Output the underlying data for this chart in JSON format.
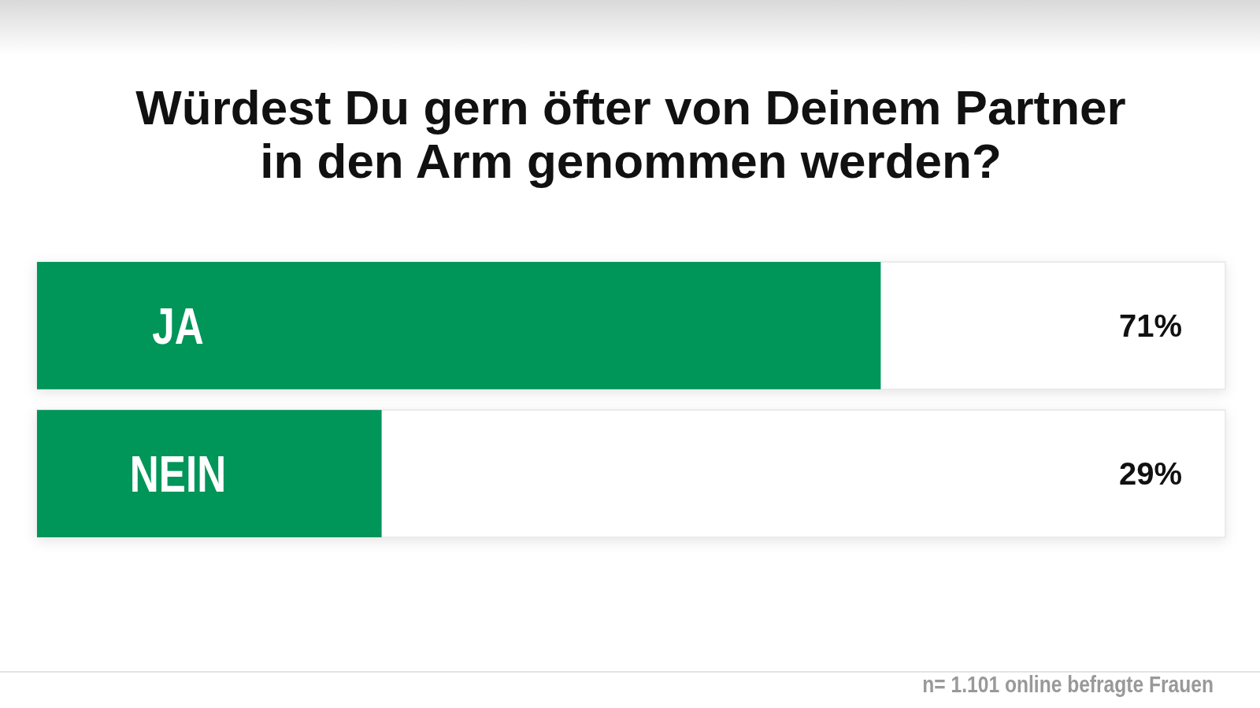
{
  "chart_data": {
    "type": "bar",
    "orientation": "horizontal",
    "title": "Würdest Du gern öfter von Deinem Partner\nin den Arm genommen werden?",
    "categories": [
      "JA",
      "NEIN"
    ],
    "values": [
      71,
      29
    ],
    "value_labels": [
      "71%",
      "29%"
    ],
    "color": "#009559",
    "xlim": [
      0,
      100
    ],
    "tick_labels": "y",
    "annotations": [
      "n= 1.101 online befragte Frauen"
    ]
  }
}
